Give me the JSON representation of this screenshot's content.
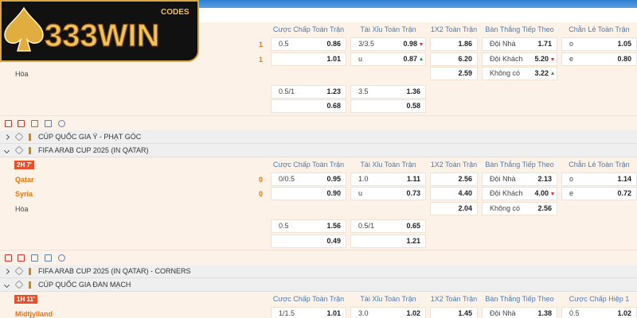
{
  "logo": {
    "text": "333WIN",
    "badge": "CODES"
  },
  "blocks": [
    {
      "type": "match",
      "headers": [
        "Cược Chấp Toàn Trận",
        "Tài Xỉu Toàn Trận",
        "1X2 Toàn Trận",
        "Bàn Thắng Tiếp Theo",
        "Chẵn Lẻ Toàn Trận"
      ],
      "teams": [
        {
          "score": "1"
        },
        {
          "score": "1"
        }
      ],
      "draw": "Hòa",
      "rows": [
        [
          {
            "label": "0.5",
            "odds": "0.86"
          },
          {
            "label": "3/3.5",
            "odds": "0.98",
            "trend": "down"
          },
          {
            "odds": "1.86"
          },
          {
            "label": "Đội Nhà",
            "odds": "1.71"
          },
          {
            "label": "o",
            "odds": "1.05"
          }
        ],
        [
          {
            "odds": "1.01"
          },
          {
            "label": "u",
            "odds": "0.87",
            "trend": "up"
          },
          {
            "odds": "6.20"
          },
          {
            "label": "Đội Khách",
            "odds": "5.20",
            "trend": "down"
          },
          {
            "label": "e",
            "odds": "0.80"
          }
        ],
        [
          null,
          null,
          {
            "odds": "2.59"
          },
          {
            "label": "Không có",
            "odds": "3.22",
            "trend": "up"
          },
          null
        ]
      ],
      "extra_rows": [
        [
          {
            "label": "0.5/1",
            "odds": "1.23"
          },
          {
            "label": "3.5",
            "odds": "1.36"
          }
        ],
        [
          {
            "odds": "0.68"
          },
          {
            "odds": "0.58"
          }
        ]
      ]
    },
    {
      "type": "tools"
    },
    {
      "type": "league",
      "name": "CÚP QUỐC GIA Ý - PHẠT GÓC"
    },
    {
      "type": "league",
      "name": "FIFA ARAB CUP 2025 (IN QATAR)",
      "open": true
    },
    {
      "type": "match",
      "time": "2H 7'",
      "headers": [
        "Cược Chấp Toàn Trận",
        "Tài Xỉu Toàn Trận",
        "1X2 Toàn Trận",
        "Bàn Thắng Tiếp Theo",
        "Chẵn Lẻ Toàn Trận"
      ],
      "teams": [
        {
          "name": "Qatar",
          "score": "0"
        },
        {
          "name": "Syria",
          "score": "0"
        }
      ],
      "draw": "Hòa",
      "rows": [
        [
          {
            "label": "0/0.5",
            "odds": "0.95"
          },
          {
            "label": "1.0",
            "odds": "1.11"
          },
          {
            "odds": "2.56"
          },
          {
            "label": "Đội Nhà",
            "odds": "2.13"
          },
          {
            "label": "o",
            "odds": "1.14"
          }
        ],
        [
          {
            "odds": "0.90"
          },
          {
            "label": "u",
            "odds": "0.73"
          },
          {
            "odds": "4.40"
          },
          {
            "label": "Đội Khách",
            "odds": "4.00",
            "trend": "down"
          },
          {
            "label": "e",
            "odds": "0.72"
          }
        ],
        [
          null,
          null,
          {
            "odds": "2.04"
          },
          {
            "label": "Không có",
            "odds": "2.56"
          },
          null
        ]
      ],
      "extra_rows": [
        [
          {
            "label": "0.5",
            "odds": "1.56"
          },
          {
            "label": "0.5/1",
            "odds": "0.65"
          }
        ],
        [
          {
            "odds": "0.49"
          },
          {
            "odds": "1.21"
          }
        ]
      ]
    },
    {
      "type": "tools"
    },
    {
      "type": "league",
      "name": "FIFA ARAB CUP 2025 (IN QATAR) - CORNERS"
    },
    {
      "type": "league",
      "name": "CÚP QUỐC GIA ĐAN MẠCH",
      "open": true
    },
    {
      "type": "match",
      "time": "1H 11'",
      "headers": [
        "Cược Chấp Toàn Trận",
        "Tài Xỉu Toàn Trận",
        "1X2 Toàn Trận",
        "Bàn Thắng Tiếp Theo",
        "Cược Chấp Hiệp 1"
      ],
      "teams": [
        {
          "name": "Midtjylland"
        }
      ],
      "rows": [
        [
          {
            "label": "1/1.5",
            "odds": "1.01"
          },
          {
            "label": "3.0",
            "odds": "1.02"
          },
          {
            "odds": "1.45"
          },
          {
            "label": "Đội Nhà",
            "odds": "1.38"
          },
          {
            "label": "0.5",
            "odds": "1.02"
          }
        ]
      ]
    }
  ]
}
